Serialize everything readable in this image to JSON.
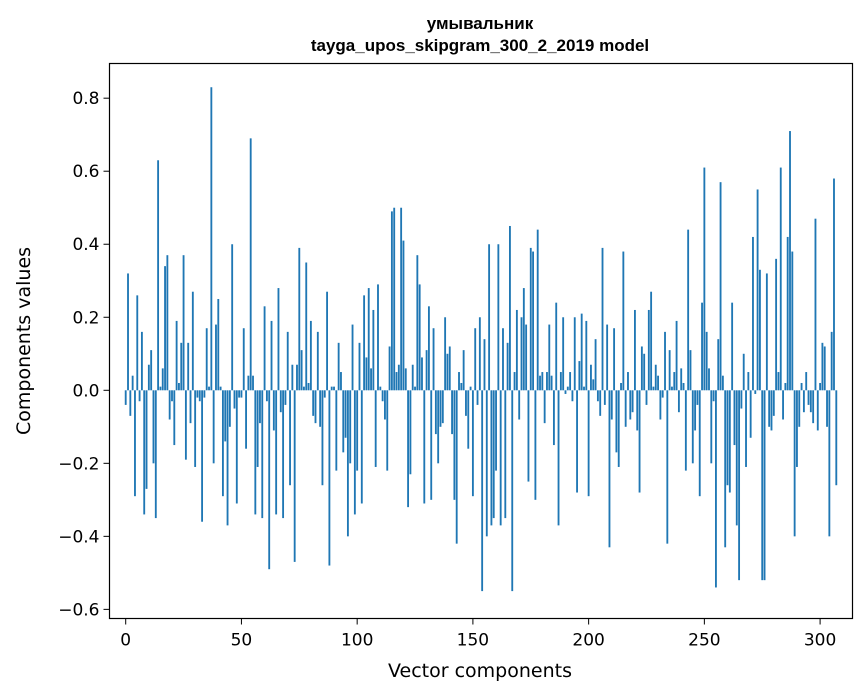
{
  "chart_data": {
    "type": "bar",
    "title": "умывальник",
    "subtitle": "tayga_upos_skipgram_300_2_2019 model",
    "xlabel": "Vector components",
    "ylabel": "Components values",
    "xlim": [
      -7,
      314
    ],
    "ylim": [
      -0.625,
      0.895
    ],
    "xticks": [
      0,
      50,
      100,
      150,
      200,
      250,
      300
    ],
    "yticks": [
      -0.6,
      -0.4,
      -0.2,
      0.0,
      0.2,
      0.4,
      0.6,
      0.8
    ],
    "ytick_labels": [
      "−0.6",
      "−0.4",
      "−0.2",
      "0.0",
      "0.2",
      "0.4",
      "0.6",
      "0.8"
    ],
    "bar_color": "#1f77b4",
    "values": [
      -0.04,
      0.32,
      -0.07,
      0.04,
      -0.29,
      0.26,
      -0.03,
      0.16,
      -0.34,
      -0.27,
      0.07,
      0.11,
      -0.2,
      -0.35,
      0.63,
      0.01,
      0.06,
      0.34,
      0.37,
      -0.08,
      -0.03,
      -0.15,
      0.19,
      0.02,
      0.13,
      0.37,
      -0.19,
      0.13,
      -0.09,
      0.27,
      -0.21,
      -0.02,
      -0.03,
      -0.36,
      -0.02,
      0.17,
      0.01,
      0.83,
      -0.2,
      0.18,
      0.25,
      0.01,
      -0.29,
      -0.14,
      -0.37,
      -0.1,
      0.4,
      -0.05,
      -0.31,
      -0.02,
      -0.02,
      0.17,
      -0.16,
      0.04,
      0.69,
      0.04,
      -0.34,
      -0.21,
      -0.09,
      -0.35,
      0.23,
      -0.03,
      -0.49,
      0.19,
      -0.11,
      -0.34,
      0.28,
      -0.06,
      -0.35,
      -0.04,
      0.16,
      -0.26,
      0.07,
      -0.47,
      0.07,
      0.39,
      0.11,
      0.01,
      0.35,
      0.02,
      0.19,
      -0.07,
      -0.09,
      0.16,
      -0.1,
      -0.26,
      -0.02,
      0.27,
      -0.48,
      0.01,
      0.01,
      -0.22,
      0.13,
      0.05,
      -0.17,
      -0.13,
      -0.4,
      -0.2,
      0.18,
      -0.34,
      -0.22,
      0.13,
      -0.31,
      0.26,
      0.09,
      0.28,
      0.06,
      0.22,
      -0.21,
      0.29,
      0.01,
      -0.03,
      -0.08,
      -0.22,
      0.12,
      0.49,
      0.5,
      0.05,
      0.07,
      0.5,
      0.41,
      0.06,
      -0.32,
      -0.23,
      0.07,
      0.01,
      0.37,
      0.29,
      0.09,
      -0.31,
      0.11,
      0.23,
      -0.3,
      0.17,
      -0.12,
      -0.2,
      -0.1,
      -0.09,
      0.2,
      0.1,
      0.12,
      -0.12,
      -0.3,
      -0.42,
      0.05,
      0.02,
      0.11,
      -0.07,
      -0.16,
      0.01,
      -0.29,
      0.17,
      -0.04,
      0.2,
      -0.55,
      0.14,
      -0.4,
      0.4,
      -0.37,
      -0.35,
      -0.22,
      0.4,
      -0.37,
      0.17,
      -0.35,
      0.13,
      0.45,
      -0.55,
      0.05,
      0.22,
      -0.08,
      0.2,
      0.28,
      0.18,
      -0.25,
      0.39,
      0.38,
      -0.3,
      0.44,
      0.04,
      0.05,
      -0.09,
      0.05,
      0.18,
      0.04,
      -0.15,
      0.24,
      -0.37,
      0.05,
      0.2,
      -0.01,
      0.01,
      0.05,
      -0.03,
      0.2,
      -0.28,
      0.08,
      0.21,
      0.01,
      0.19,
      -0.29,
      0.07,
      0.03,
      0.14,
      -0.03,
      -0.07,
      0.39,
      -0.04,
      0.18,
      -0.43,
      -0.08,
      0.17,
      -0.17,
      -0.21,
      0.02,
      0.38,
      -0.1,
      0.05,
      -0.08,
      -0.06,
      0.22,
      -0.11,
      -0.28,
      0.12,
      0.1,
      -0.04,
      0.22,
      0.27,
      0.01,
      0.07,
      0.04,
      -0.08,
      -0.02,
      0.16,
      -0.42,
      0.11,
      0.01,
      0.05,
      0.19,
      -0.06,
      0.06,
      0.02,
      -0.22,
      0.44,
      0.11,
      -0.2,
      -0.11,
      -0.04,
      -0.29,
      0.24,
      0.61,
      0.16,
      0.06,
      -0.2,
      -0.03,
      -0.54,
      0.14,
      0.57,
      0.04,
      -0.43,
      -0.26,
      -0.28,
      0.24,
      -0.15,
      -0.37,
      -0.52,
      -0.05,
      0.1,
      -0.21,
      0.05,
      -0.13,
      0.42,
      -0.01,
      0.55,
      0.33,
      -0.52,
      -0.52,
      0.32,
      -0.1,
      -0.11,
      -0.07,
      0.36,
      0.05,
      0.61,
      -0.08,
      0.02,
      0.42,
      0.71,
      0.38,
      -0.4,
      -0.21,
      -0.1,
      0.02,
      -0.06,
      0.05,
      -0.04,
      -0.06,
      -0.09,
      0.47,
      -0.11,
      0.02,
      0.13,
      0.12,
      -0.1,
      -0.4,
      0.16,
      0.58,
      -0.26
    ]
  }
}
